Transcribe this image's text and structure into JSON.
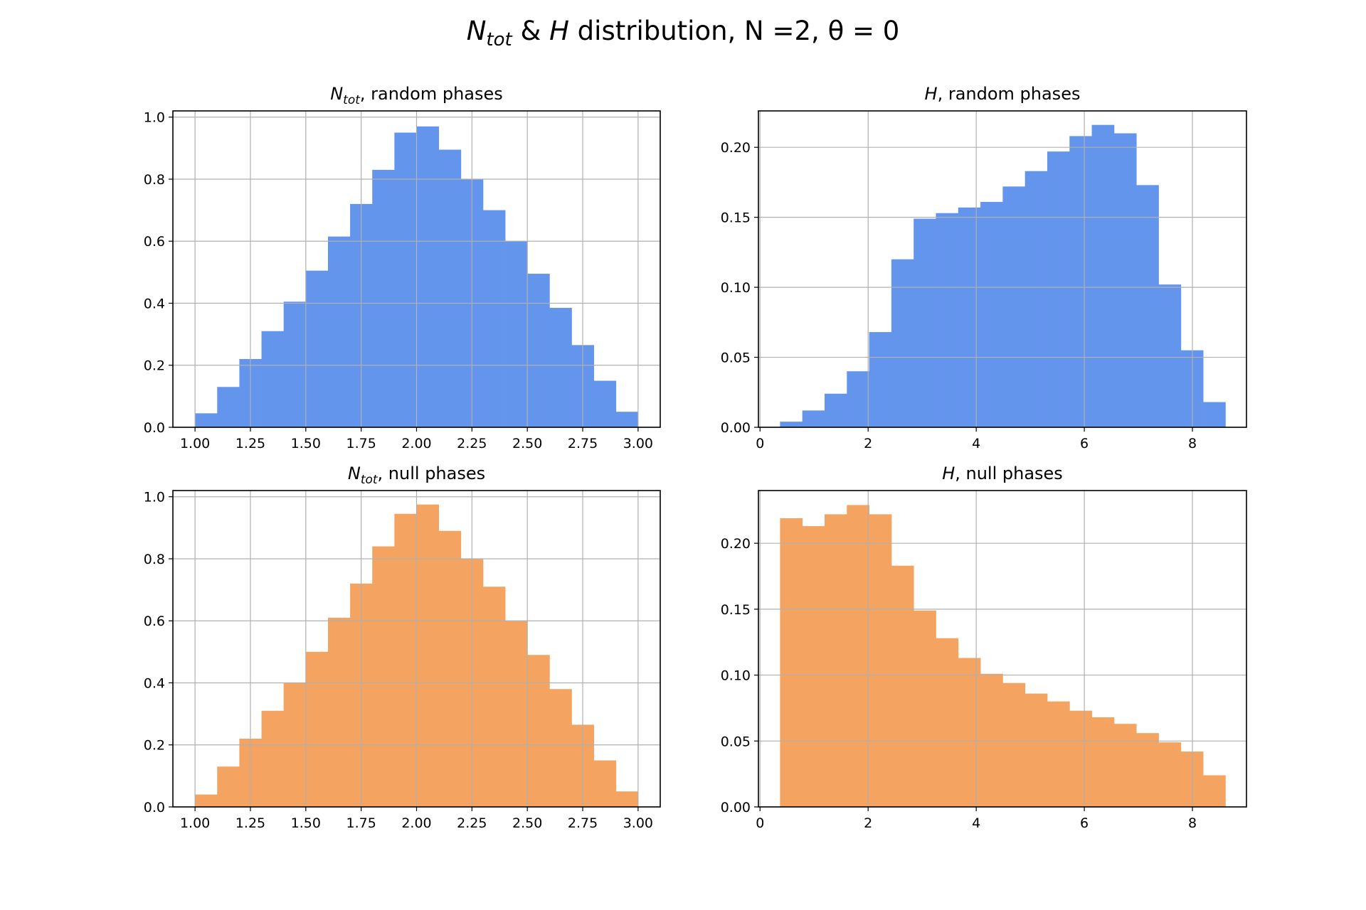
{
  "figure": {
    "title_parts": {
      "n_main": "N",
      "n_sub": "tot",
      "amp": " & ",
      "h": "H",
      "rest": " distribution, N =2, θ = 0"
    }
  },
  "colors": {
    "random": "#6495ED",
    "null": "#F4A460",
    "grid": "#b0b0b0",
    "axes": "#000000"
  },
  "chart_data": [
    {
      "type": "bar",
      "title": {
        "var": "N",
        "sub": "tot",
        "rest": ", random phases"
      },
      "color_key": "random",
      "xlim": [
        0.9,
        3.1
      ],
      "ylim": [
        0,
        1.02
      ],
      "x_ticks": [
        1.0,
        1.25,
        1.5,
        1.75,
        2.0,
        2.25,
        2.5,
        2.75,
        3.0
      ],
      "x_tick_labels": [
        "1.00",
        "1.25",
        "1.50",
        "1.75",
        "2.00",
        "2.25",
        "2.50",
        "2.75",
        "3.00"
      ],
      "y_ticks": [
        0,
        0.2,
        0.4,
        0.6,
        0.8,
        1.0
      ],
      "y_tick_labels": [
        "0.0",
        "0.2",
        "0.4",
        "0.6",
        "0.8",
        "1.0"
      ],
      "grid": true,
      "bin_start": 1.0,
      "bin_width": 0.1,
      "values": [
        0.045,
        0.13,
        0.22,
        0.31,
        0.405,
        0.505,
        0.615,
        0.72,
        0.83,
        0.95,
        0.97,
        0.895,
        0.8,
        0.7,
        0.6,
        0.495,
        0.385,
        0.265,
        0.15,
        0.05
      ]
    },
    {
      "type": "bar",
      "title": {
        "var": "H",
        "sub": "",
        "rest": ", random phases"
      },
      "color_key": "random",
      "xlim": [
        -0.03,
        9.0
      ],
      "ylim": [
        0,
        0.226
      ],
      "x_ticks": [
        0,
        2,
        4,
        6,
        8
      ],
      "x_tick_labels": [
        "0",
        "2",
        "4",
        "6",
        "8"
      ],
      "y_ticks": [
        0,
        0.05,
        0.1,
        0.15,
        0.2
      ],
      "y_tick_labels": [
        "0.00",
        "0.05",
        "0.10",
        "0.15",
        "0.20"
      ],
      "grid": true,
      "bin_start": 0.37,
      "bin_width": 0.412,
      "values": [
        0.004,
        0.012,
        0.024,
        0.04,
        0.068,
        0.12,
        0.149,
        0.153,
        0.157,
        0.161,
        0.172,
        0.183,
        0.197,
        0.208,
        0.216,
        0.21,
        0.173,
        0.102,
        0.055,
        0.018
      ]
    },
    {
      "type": "bar",
      "title": {
        "var": "N",
        "sub": "tot",
        "rest": ", null phases"
      },
      "color_key": "null",
      "xlim": [
        0.9,
        3.1
      ],
      "ylim": [
        0,
        1.02
      ],
      "x_ticks": [
        1.0,
        1.25,
        1.5,
        1.75,
        2.0,
        2.25,
        2.5,
        2.75,
        3.0
      ],
      "x_tick_labels": [
        "1.00",
        "1.25",
        "1.50",
        "1.75",
        "2.00",
        "2.25",
        "2.50",
        "2.75",
        "3.00"
      ],
      "y_ticks": [
        0,
        0.2,
        0.4,
        0.6,
        0.8,
        1.0
      ],
      "y_tick_labels": [
        "0.0",
        "0.2",
        "0.4",
        "0.6",
        "0.8",
        "1.0"
      ],
      "grid": true,
      "bin_start": 1.0,
      "bin_width": 0.1,
      "values": [
        0.04,
        0.13,
        0.22,
        0.31,
        0.4,
        0.5,
        0.61,
        0.72,
        0.84,
        0.945,
        0.975,
        0.89,
        0.8,
        0.71,
        0.6,
        0.49,
        0.38,
        0.265,
        0.15,
        0.05
      ]
    },
    {
      "type": "bar",
      "title": {
        "var": "H",
        "sub": "",
        "rest": ", null phases"
      },
      "color_key": "null",
      "xlim": [
        -0.03,
        9.0
      ],
      "ylim": [
        0,
        0.24
      ],
      "x_ticks": [
        0,
        2,
        4,
        6,
        8
      ],
      "x_tick_labels": [
        "0",
        "2",
        "4",
        "6",
        "8"
      ],
      "y_ticks": [
        0,
        0.05,
        0.1,
        0.15,
        0.2
      ],
      "y_tick_labels": [
        "0.00",
        "0.05",
        "0.10",
        "0.15",
        "0.20"
      ],
      "grid": true,
      "bin_start": 0.37,
      "bin_width": 0.412,
      "values": [
        0.219,
        0.213,
        0.222,
        0.229,
        0.222,
        0.183,
        0.149,
        0.128,
        0.113,
        0.101,
        0.094,
        0.086,
        0.08,
        0.073,
        0.068,
        0.063,
        0.056,
        0.049,
        0.042,
        0.024
      ]
    }
  ]
}
